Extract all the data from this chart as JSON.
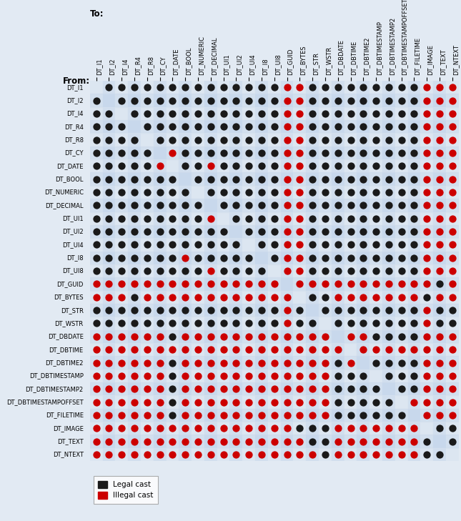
{
  "col_labels": [
    "DT_I1",
    "DT_I2",
    "DT_I4",
    "DT_R4",
    "DT_R8",
    "DT_CY",
    "DT_DATE",
    "DT_BOOL",
    "DT_NUMERIC",
    "DT_DECIMAL",
    "DT_UI1",
    "DT_UI2",
    "DT_UI4",
    "DT_I8",
    "DT_UI8",
    "DT_GUID",
    "DT_BYTES",
    "DT_STR",
    "DT_WSTR",
    "DT_DBDATE",
    "DT_DBTIME",
    "DT_DBTIME2",
    "DT_DBTIMESTAMP",
    "DT_DBTIMESTAMP2",
    "DT_DBTIMESTAMPOFFSET",
    "DT_FILETIME",
    "DT_IMAGE",
    "DT_TEXT",
    "DT_NTEXT"
  ],
  "row_labels": [
    "DT_I1",
    "DT_I2",
    "DT_I4",
    "DT_R4",
    "DT_R8",
    "DT_CY",
    "DT_DATE",
    "DT_BOOL",
    "DT_NUMERIC",
    "DT_DECIMAL",
    "DT_UI1",
    "DT_UI2",
    "DT_UI4",
    "DT_I8",
    "DT_UI8",
    "DT_GUID",
    "DT_BYTES",
    "DT_STR",
    "DT_WSTR",
    "DT_DBDATE",
    "DT_DBTIME",
    "DT_DBTIME2",
    "DT_DBTIMESTAMP",
    "DT_DBTIMESTAMP2",
    "DT_DBTIMESTAMPOFFSET",
    "DT_FILETIME",
    "DT_IMAGE",
    "DT_TEXT",
    "DT_NTEXT"
  ],
  "matrix": [
    [
      0,
      1,
      1,
      1,
      1,
      1,
      1,
      1,
      1,
      1,
      1,
      1,
      1,
      1,
      1,
      2,
      2,
      1,
      1,
      1,
      1,
      1,
      1,
      1,
      1,
      1,
      2,
      2,
      2
    ],
    [
      1,
      0,
      1,
      1,
      1,
      1,
      1,
      1,
      1,
      1,
      1,
      1,
      1,
      1,
      1,
      2,
      2,
      1,
      1,
      1,
      1,
      1,
      1,
      1,
      1,
      1,
      2,
      2,
      2
    ],
    [
      1,
      1,
      0,
      1,
      1,
      1,
      1,
      1,
      1,
      1,
      1,
      1,
      1,
      1,
      1,
      2,
      2,
      1,
      1,
      1,
      1,
      1,
      1,
      1,
      1,
      1,
      2,
      2,
      2
    ],
    [
      1,
      1,
      1,
      0,
      1,
      1,
      1,
      1,
      1,
      1,
      1,
      1,
      1,
      1,
      1,
      2,
      2,
      1,
      1,
      1,
      1,
      1,
      1,
      1,
      1,
      1,
      2,
      2,
      2
    ],
    [
      1,
      1,
      1,
      1,
      0,
      1,
      1,
      1,
      1,
      1,
      1,
      1,
      1,
      1,
      1,
      2,
      2,
      1,
      1,
      1,
      1,
      1,
      1,
      1,
      1,
      1,
      2,
      2,
      2
    ],
    [
      1,
      1,
      1,
      1,
      1,
      0,
      2,
      1,
      1,
      1,
      1,
      1,
      1,
      1,
      1,
      2,
      2,
      1,
      1,
      1,
      1,
      1,
      1,
      1,
      1,
      1,
      2,
      2,
      2
    ],
    [
      1,
      1,
      1,
      1,
      1,
      2,
      0,
      1,
      1,
      2,
      1,
      1,
      1,
      1,
      1,
      2,
      2,
      1,
      1,
      1,
      1,
      1,
      1,
      1,
      1,
      1,
      2,
      2,
      2
    ],
    [
      1,
      1,
      1,
      1,
      1,
      1,
      1,
      0,
      1,
      1,
      1,
      1,
      1,
      1,
      1,
      2,
      2,
      1,
      1,
      1,
      1,
      1,
      1,
      1,
      1,
      1,
      2,
      2,
      2
    ],
    [
      1,
      1,
      1,
      1,
      1,
      1,
      1,
      1,
      0,
      1,
      1,
      1,
      1,
      1,
      1,
      2,
      2,
      1,
      1,
      1,
      1,
      1,
      1,
      1,
      1,
      1,
      2,
      2,
      2
    ],
    [
      1,
      1,
      1,
      1,
      1,
      1,
      1,
      1,
      1,
      0,
      1,
      1,
      1,
      1,
      1,
      2,
      2,
      1,
      1,
      1,
      1,
      1,
      1,
      1,
      1,
      1,
      2,
      2,
      2
    ],
    [
      1,
      1,
      1,
      1,
      1,
      1,
      1,
      1,
      1,
      2,
      0,
      1,
      1,
      1,
      1,
      2,
      2,
      1,
      1,
      1,
      1,
      1,
      1,
      1,
      1,
      1,
      2,
      2,
      2
    ],
    [
      1,
      1,
      1,
      1,
      1,
      1,
      1,
      1,
      1,
      1,
      1,
      0,
      1,
      1,
      1,
      2,
      2,
      1,
      1,
      1,
      1,
      1,
      1,
      1,
      1,
      1,
      2,
      2,
      2
    ],
    [
      1,
      1,
      1,
      1,
      1,
      1,
      1,
      1,
      1,
      1,
      1,
      1,
      0,
      1,
      1,
      2,
      2,
      1,
      1,
      1,
      1,
      1,
      1,
      1,
      1,
      1,
      2,
      2,
      2
    ],
    [
      1,
      1,
      1,
      1,
      1,
      1,
      1,
      2,
      1,
      1,
      1,
      1,
      1,
      0,
      1,
      2,
      2,
      1,
      1,
      1,
      1,
      1,
      1,
      1,
      1,
      1,
      2,
      2,
      2
    ],
    [
      1,
      1,
      1,
      1,
      1,
      1,
      1,
      1,
      1,
      2,
      1,
      1,
      1,
      1,
      0,
      2,
      2,
      1,
      1,
      1,
      1,
      1,
      1,
      1,
      1,
      1,
      2,
      2,
      2
    ],
    [
      2,
      2,
      2,
      2,
      2,
      2,
      2,
      2,
      2,
      2,
      2,
      2,
      2,
      2,
      2,
      0,
      2,
      2,
      2,
      2,
      2,
      2,
      2,
      2,
      2,
      2,
      2,
      1,
      2
    ],
    [
      2,
      2,
      2,
      1,
      2,
      2,
      2,
      2,
      2,
      2,
      2,
      2,
      2,
      2,
      2,
      2,
      0,
      1,
      1,
      2,
      2,
      2,
      2,
      2,
      2,
      2,
      1,
      2,
      2
    ],
    [
      1,
      1,
      1,
      1,
      1,
      1,
      1,
      1,
      1,
      1,
      1,
      1,
      1,
      1,
      1,
      2,
      1,
      0,
      1,
      1,
      1,
      1,
      1,
      1,
      1,
      1,
      2,
      1,
      1
    ],
    [
      1,
      1,
      1,
      1,
      1,
      1,
      1,
      1,
      1,
      1,
      1,
      1,
      1,
      1,
      1,
      2,
      1,
      1,
      0,
      1,
      1,
      1,
      1,
      1,
      1,
      1,
      2,
      1,
      1
    ],
    [
      2,
      2,
      2,
      2,
      2,
      2,
      1,
      2,
      2,
      2,
      2,
      2,
      2,
      2,
      2,
      2,
      2,
      2,
      2,
      0,
      2,
      2,
      1,
      1,
      1,
      1,
      2,
      2,
      2
    ],
    [
      2,
      2,
      2,
      2,
      2,
      2,
      2,
      2,
      2,
      2,
      2,
      2,
      2,
      2,
      2,
      2,
      2,
      2,
      2,
      2,
      0,
      2,
      2,
      2,
      2,
      2,
      2,
      2,
      2
    ],
    [
      2,
      2,
      2,
      2,
      2,
      2,
      1,
      2,
      2,
      2,
      2,
      2,
      2,
      2,
      2,
      2,
      2,
      2,
      2,
      1,
      2,
      0,
      1,
      1,
      1,
      1,
      2,
      2,
      2
    ],
    [
      2,
      2,
      2,
      2,
      2,
      2,
      1,
      2,
      2,
      2,
      2,
      2,
      2,
      2,
      2,
      2,
      2,
      2,
      2,
      1,
      1,
      1,
      0,
      1,
      1,
      1,
      2,
      2,
      2
    ],
    [
      2,
      2,
      2,
      2,
      2,
      2,
      1,
      2,
      2,
      2,
      2,
      2,
      2,
      2,
      2,
      2,
      2,
      2,
      2,
      1,
      1,
      1,
      1,
      0,
      1,
      1,
      2,
      2,
      2
    ],
    [
      2,
      2,
      2,
      2,
      2,
      2,
      1,
      2,
      2,
      2,
      2,
      2,
      2,
      2,
      2,
      2,
      2,
      2,
      2,
      1,
      1,
      1,
      1,
      1,
      0,
      2,
      2,
      2,
      2
    ],
    [
      2,
      2,
      2,
      2,
      2,
      2,
      1,
      2,
      2,
      2,
      2,
      2,
      2,
      2,
      2,
      2,
      2,
      2,
      2,
      1,
      1,
      1,
      1,
      1,
      1,
      0,
      2,
      2,
      2
    ],
    [
      2,
      2,
      2,
      2,
      2,
      2,
      2,
      2,
      2,
      2,
      2,
      2,
      2,
      2,
      2,
      2,
      1,
      1,
      1,
      2,
      2,
      2,
      2,
      2,
      2,
      2,
      0,
      1,
      1
    ],
    [
      2,
      2,
      2,
      2,
      2,
      2,
      2,
      2,
      2,
      2,
      2,
      2,
      2,
      2,
      2,
      2,
      2,
      1,
      1,
      2,
      2,
      2,
      2,
      2,
      2,
      2,
      1,
      0,
      1
    ],
    [
      2,
      2,
      2,
      2,
      2,
      2,
      2,
      2,
      2,
      2,
      2,
      2,
      2,
      2,
      2,
      2,
      2,
      2,
      1,
      2,
      2,
      2,
      2,
      2,
      2,
      2,
      1,
      1,
      0
    ]
  ],
  "title": "To:",
  "from_label": "From:",
  "fig_bg_color": "#e2eaf3",
  "grid_bg_even": "#dce6f1",
  "grid_bg_odd": "#c8d8ec",
  "row_even_color": "#dce6f1",
  "row_odd_color": "#c8d8ec",
  "black_color": "#1a1a1a",
  "red_color": "#cc0000",
  "dot_size": 55,
  "tick_fontsize": 6.0,
  "label_fontsize": 8.5
}
